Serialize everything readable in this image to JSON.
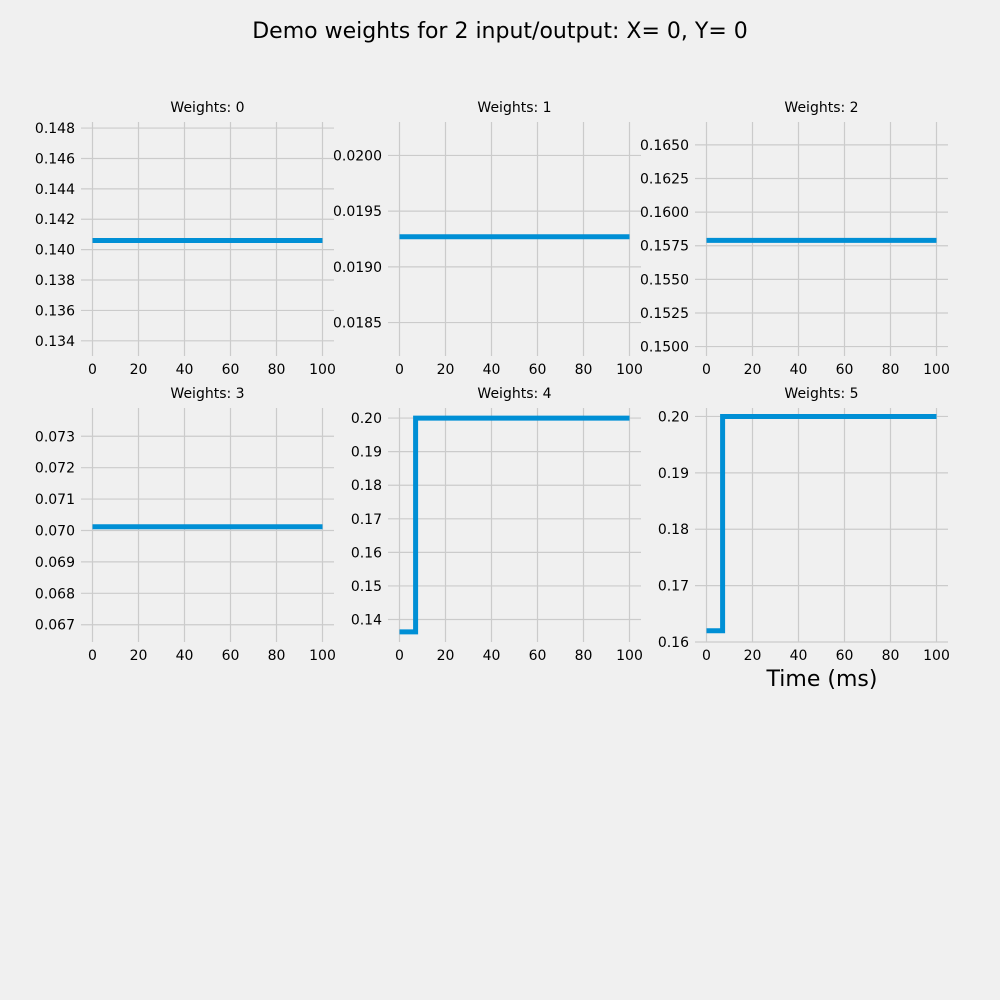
{
  "figure": {
    "title": "Demo weights for 2 input/output:  X= 0, Y= 0",
    "xlabel": "Time (ms)",
    "colors": {
      "background": "#f0f0f0",
      "line": "#008fd5",
      "grid": "#cbcbcb"
    }
  },
  "chart_data": [
    {
      "type": "line",
      "title": "Weights: 0",
      "xlim": [
        -5,
        105
      ],
      "ylim": [
        0.133,
        0.1484
      ],
      "xticks": [
        0,
        20,
        40,
        60,
        80,
        100
      ],
      "yticks": [
        0.134,
        0.136,
        0.138,
        0.14,
        0.142,
        0.144,
        0.146,
        0.148
      ],
      "ytick_decimals": 3,
      "series": [
        {
          "x": [
            0,
            100
          ],
          "y": [
            0.1406,
            0.1406
          ],
          "step": "post"
        }
      ]
    },
    {
      "type": "line",
      "title": "Weights: 1",
      "xlim": [
        -5,
        105
      ],
      "ylim": [
        0.0182,
        0.0203
      ],
      "xticks": [
        0,
        20,
        40,
        60,
        80,
        100
      ],
      "yticks": [
        0.0185,
        0.019,
        0.0195,
        0.02
      ],
      "ytick_decimals": 4,
      "series": [
        {
          "x": [
            0,
            100
          ],
          "y": [
            0.01927,
            0.01927
          ],
          "step": "post"
        }
      ]
    },
    {
      "type": "line",
      "title": "Weights: 2",
      "xlim": [
        -5,
        105
      ],
      "ylim": [
        0.1493,
        0.1667
      ],
      "xticks": [
        0,
        20,
        40,
        60,
        80,
        100
      ],
      "yticks": [
        0.15,
        0.1525,
        0.155,
        0.1575,
        0.16,
        0.1625,
        0.165
      ],
      "ytick_decimals": 4,
      "series": [
        {
          "x": [
            0,
            100
          ],
          "y": [
            0.1579,
            0.1579
          ],
          "step": "post"
        }
      ]
    },
    {
      "type": "line",
      "title": "Weights: 3",
      "xlim": [
        -5,
        105
      ],
      "ylim": [
        0.06645,
        0.0739
      ],
      "xticks": [
        0,
        20,
        40,
        60,
        80,
        100
      ],
      "yticks": [
        0.067,
        0.068,
        0.069,
        0.07,
        0.071,
        0.072,
        0.073
      ],
      "ytick_decimals": 3,
      "series": [
        {
          "x": [
            0,
            100
          ],
          "y": [
            0.07012,
            0.07012
          ],
          "step": "post"
        }
      ]
    },
    {
      "type": "line",
      "title": "Weights: 4",
      "xlim": [
        -5,
        105
      ],
      "ylim": [
        0.1333,
        0.203
      ],
      "xticks": [
        0,
        20,
        40,
        60,
        80,
        100
      ],
      "yticks": [
        0.14,
        0.15,
        0.16,
        0.17,
        0.18,
        0.19,
        0.2
      ],
      "ytick_decimals": 2,
      "series": [
        {
          "x": [
            0,
            7,
            100
          ],
          "y": [
            0.1363,
            0.2,
            0.2
          ],
          "step": "post"
        }
      ]
    },
    {
      "type": "line",
      "title": "Weights: 5",
      "xlim": [
        -5,
        105
      ],
      "ylim": [
        0.16,
        0.2015
      ],
      "xticks": [
        0,
        20,
        40,
        60,
        80,
        100
      ],
      "yticks": [
        0.16,
        0.17,
        0.18,
        0.19,
        0.2
      ],
      "ytick_decimals": 2,
      "series": [
        {
          "x": [
            0,
            7,
            100
          ],
          "y": [
            0.162,
            0.2,
            0.2
          ],
          "step": "post"
        }
      ]
    }
  ]
}
